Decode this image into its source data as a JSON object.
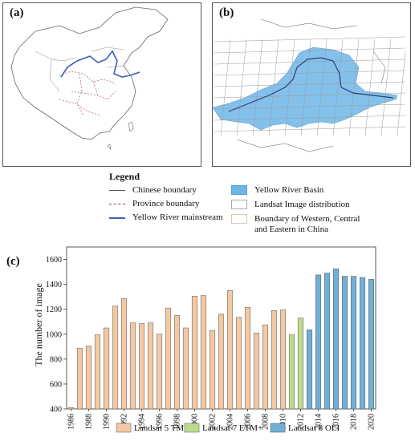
{
  "panels": {
    "a": "(a)",
    "b": "(b)",
    "c": "(c)"
  },
  "legend": {
    "title": "Legend",
    "items": [
      {
        "label": "Chinese boundary",
        "kind": "line",
        "color": "#555555"
      },
      {
        "label": "Province boundary",
        "kind": "dash",
        "color": "#9b3b3b"
      },
      {
        "label": "Yellow River mainstream",
        "kind": "line",
        "color": "#3b5fb8"
      },
      {
        "label": "Yellow River Basin",
        "kind": "box",
        "color": "#6fb6e6"
      },
      {
        "label": "Landsat Image distribution",
        "kind": "box-outline",
        "color": "#a9a9a9"
      },
      {
        "label": "Boundary of Western, Central",
        "label2": "and Eastern in China",
        "kind": "box-outline",
        "color": "#d9c9b0"
      }
    ]
  },
  "colors": {
    "tm": "#f2c9a4",
    "etm": "#bcdb8f",
    "oli": "#6fb0d4",
    "basin": "#6fb6e6",
    "bar_edge": "#555555"
  },
  "chart_data": {
    "type": "bar",
    "title": "",
    "xlabel": "",
    "ylabel": "The number of image",
    "ylim": [
      400,
      1700
    ],
    "yticks": [
      400,
      600,
      800,
      1000,
      1200,
      1400,
      1600
    ],
    "xticks": [
      1986,
      1988,
      1990,
      1992,
      1994,
      1996,
      1998,
      2000,
      2002,
      2004,
      2006,
      2008,
      2010,
      2012,
      2014,
      2016,
      2018,
      2020
    ],
    "legend_position": "bottom",
    "series": [
      {
        "name": "Landsat 5 TM",
        "x": [
          1986,
          1987,
          1988,
          1989,
          1990,
          1991,
          1992,
          1993,
          1994,
          1995,
          1996,
          1997,
          1998,
          1999,
          2000,
          2001,
          2002,
          2003,
          2004,
          2005,
          2006,
          2007,
          2008,
          2009,
          2010
        ],
        "values": [
          410,
          888,
          905,
          995,
          1050,
          1225,
          1285,
          1090,
          1085,
          1090,
          1000,
          1210,
          1150,
          1050,
          1305,
          1310,
          1030,
          1160,
          1350,
          1135,
          1215,
          1010,
          1075,
          1190,
          1195
        ]
      },
      {
        "name": "Landsat 7 ETM+",
        "x": [
          2011,
          2012
        ],
        "values": [
          995,
          1130
        ]
      },
      {
        "name": "Landsat 8 OLI",
        "x": [
          2013,
          2014,
          2015,
          2016,
          2017,
          2018,
          2019,
          2020
        ],
        "values": [
          1035,
          1475,
          1490,
          1525,
          1465,
          1465,
          1455,
          1440
        ]
      }
    ]
  }
}
